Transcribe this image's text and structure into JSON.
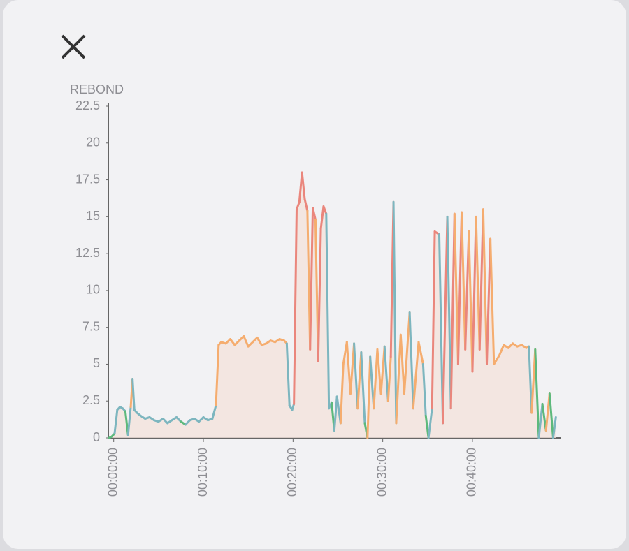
{
  "chart_data": {
    "type": "line",
    "y_label": "REBOND",
    "x": [
      -0.5,
      -0.2,
      0.1,
      0.4,
      0.7,
      1.0,
      1.3,
      1.6,
      1.9,
      2.1,
      2.3,
      2.6,
      3.0,
      3.5,
      4.0,
      4.5,
      5.0,
      5.5,
      6.0,
      6.5,
      7.0,
      7.5,
      8.0,
      8.5,
      9.0,
      9.5,
      10.0,
      10.5,
      11.0,
      11.4,
      11.7,
      12.0,
      12.5,
      13.0,
      13.5,
      14.0,
      14.5,
      15.0,
      15.5,
      16.0,
      16.5,
      17.0,
      17.5,
      18.0,
      18.5,
      19.0,
      19.3,
      19.6,
      19.9,
      20.1,
      20.4,
      20.7,
      21.0,
      21.3,
      21.6,
      21.9,
      22.2,
      22.5,
      22.8,
      23.1,
      23.4,
      23.7,
      24.0,
      24.3,
      24.6,
      24.9,
      25.3,
      25.6,
      26.0,
      26.4,
      26.8,
      27.2,
      27.6,
      28.0,
      28.3,
      28.6,
      29.0,
      29.4,
      29.8,
      30.2,
      30.6,
      30.9,
      31.2,
      31.5,
      32.0,
      32.4,
      33.0,
      33.4,
      34.0,
      34.5,
      34.8,
      35.1,
      35.5,
      35.8,
      36.3,
      36.7,
      37.2,
      37.6,
      38.0,
      38.4,
      38.8,
      39.2,
      39.6,
      40.0,
      40.4,
      40.8,
      41.2,
      41.6,
      42.0,
      42.4,
      43.0,
      43.5,
      44.0,
      44.5,
      45.0,
      45.5,
      46.0,
      46.3,
      46.6,
      47.0,
      47.4,
      47.8,
      48.2,
      48.6,
      49.0,
      49.3
    ],
    "values": [
      0,
      0.1,
      0.3,
      1.9,
      2.1,
      2.0,
      1.8,
      0.2,
      2.1,
      4.0,
      1.9,
      1.7,
      1.5,
      1.3,
      1.4,
      1.2,
      1.1,
      1.3,
      1.0,
      1.2,
      1.4,
      1.1,
      0.9,
      1.2,
      1.3,
      1.1,
      1.4,
      1.2,
      1.3,
      2.2,
      6.3,
      6.5,
      6.4,
      6.7,
      6.3,
      6.6,
      6.9,
      6.2,
      6.5,
      6.8,
      6.3,
      6.4,
      6.6,
      6.5,
      6.7,
      6.6,
      6.4,
      2.2,
      1.9,
      2.3,
      15.5,
      16.0,
      18.0,
      16.2,
      15.4,
      6.0,
      15.6,
      14.8,
      5.2,
      14.2,
      15.7,
      15.2,
      2.0,
      2.4,
      0.5,
      2.8,
      1.0,
      5.0,
      6.5,
      3.0,
      6.4,
      2.0,
      5.8,
      1.0,
      0.0,
      5.5,
      2.0,
      6.0,
      3.0,
      6.2,
      2.5,
      5.5,
      16.0,
      1.0,
      7.0,
      3.0,
      8.5,
      2.0,
      6.5,
      5.0,
      1.5,
      0.0,
      2.0,
      14.0,
      13.8,
      1.0,
      15.0,
      2.0,
      15.2,
      5.0,
      15.3,
      6.0,
      14.0,
      4.5,
      15.0,
      6.0,
      15.5,
      5.0,
      13.5,
      5.0,
      5.6,
      6.3,
      6.1,
      6.4,
      6.2,
      6.3,
      6.1,
      6.2,
      1.7,
      6.0,
      0.0,
      2.3,
      0.5,
      3.0,
      0.0,
      1.4
    ],
    "color_zones": [
      {
        "below": 1,
        "color": "#5db97c"
      },
      {
        "below": 3,
        "color": "#7db6bf"
      },
      {
        "below": 13,
        "color": "#f5ad6f"
      },
      {
        "below": 100,
        "color": "#ea867c"
      }
    ],
    "area_color": "#f3e2dc",
    "xlim": [
      -0.6,
      49.9
    ],
    "xticks": [
      {
        "value": 0,
        "label": "00:00:00"
      },
      {
        "value": 10,
        "label": "00:10:00"
      },
      {
        "value": 20,
        "label": "00:20:00"
      },
      {
        "value": 30,
        "label": "00:30:00"
      },
      {
        "value": 40,
        "label": "00:40:00"
      }
    ],
    "ylim": [
      0,
      22.5
    ],
    "yticks": [
      0,
      2.5,
      5,
      7.5,
      10,
      12.5,
      15,
      17.5,
      20,
      22.5
    ]
  }
}
